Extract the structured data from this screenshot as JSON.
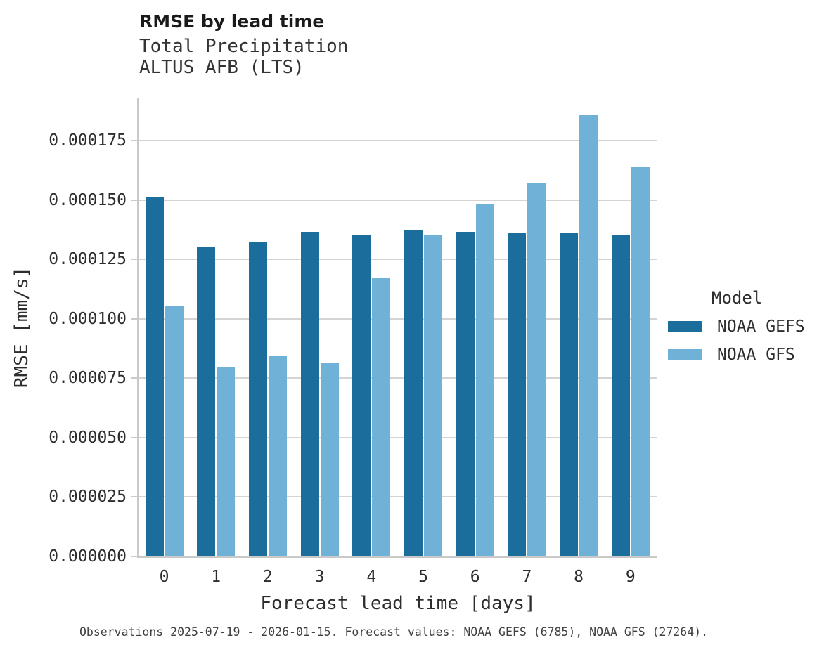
{
  "chart_data": {
    "type": "bar",
    "title": "RMSE by lead time",
    "subtitle": [
      "Total Precipitation",
      "ALTUS AFB (LTS)"
    ],
    "xlabel": "Forecast lead time [days]",
    "ylabel": "RMSE [mm/s]",
    "categories": [
      "0",
      "1",
      "2",
      "3",
      "4",
      "5",
      "6",
      "7",
      "8",
      "9"
    ],
    "series": [
      {
        "name": "NOAA GEFS",
        "color": "#1b6d9c",
        "values": [
          0.000151,
          0.0001305,
          0.0001325,
          0.0001365,
          0.0001355,
          0.0001375,
          0.0001365,
          0.000136,
          0.000136,
          0.0001355
        ]
      },
      {
        "name": "NOAA GFS",
        "color": "#70b1d7",
        "values": [
          0.0001055,
          7.95e-05,
          8.45e-05,
          8.15e-05,
          0.0001175,
          0.0001355,
          0.0001485,
          0.000157,
          0.000186,
          0.000164
        ]
      }
    ],
    "ylim": [
      0,
      0.00019275
    ],
    "yticks": [
      0,
      2.5e-05,
      5e-05,
      7.5e-05,
      0.0001,
      0.000125,
      0.00015,
      0.000175
    ],
    "ytick_labels": [
      "0.000000",
      "0.000025",
      "0.000050",
      "0.000075",
      "0.000100",
      "0.000125",
      "0.000150",
      "0.000175"
    ],
    "grid": "horizontal",
    "legend_title": "Model",
    "legend_position": "right",
    "caption": "Observations 2025-07-19 - 2026-01-15. Forecast values: NOAA GEFS (6785), NOAA GFS (27264)."
  }
}
